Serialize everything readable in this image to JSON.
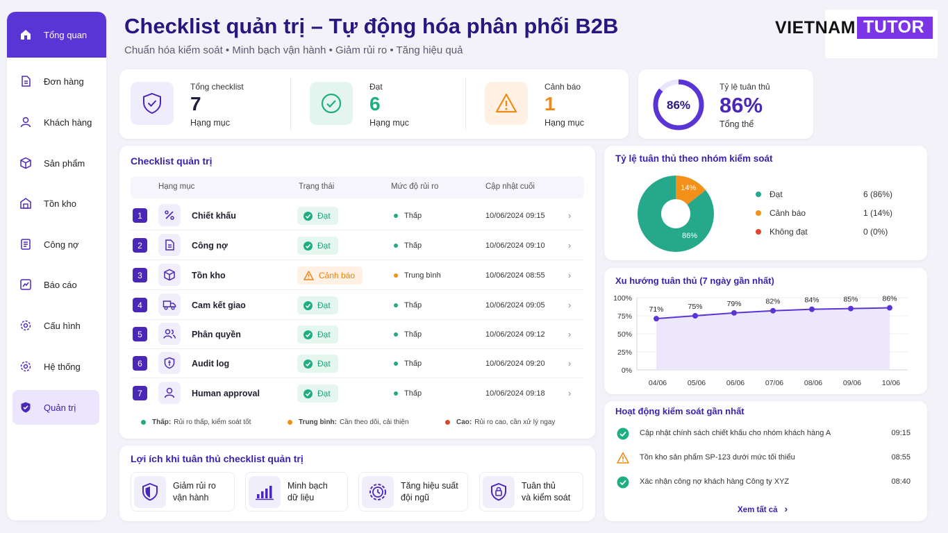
{
  "sidebar": {
    "items": [
      {
        "label": "Tổng quan",
        "icon": "home-icon"
      },
      {
        "label": "Đơn hàng",
        "icon": "order-icon"
      },
      {
        "label": "Khách hàng",
        "icon": "user-icon"
      },
      {
        "label": "Sản phẩm",
        "icon": "box-icon"
      },
      {
        "label": "Tồn kho",
        "icon": "warehouse-icon"
      },
      {
        "label": "Công nợ",
        "icon": "ledger-icon"
      },
      {
        "label": "Báo cáo",
        "icon": "report-icon"
      },
      {
        "label": "Cấu hình",
        "icon": "gear-icon"
      },
      {
        "label": "Hệ thống",
        "icon": "settings-icon"
      },
      {
        "label": "Quản trị",
        "icon": "shield-icon"
      }
    ]
  },
  "header": {
    "title": "Checklist quản trị – Tự động hóa phân phối B2B",
    "subtitle": "Chuẩn hóa kiểm soát  •  Minh bạch vận hành  •  Giảm rủi ro  •  Tăng hiệu quả"
  },
  "logo": {
    "part1": "VIETNAM",
    "part2": "TUTOR"
  },
  "stats": {
    "total": {
      "label": "Tổng checklist",
      "value": "7",
      "unit": "Hạng mục"
    },
    "pass": {
      "label": "Đạt",
      "value": "6",
      "unit": "Hạng mục"
    },
    "warn": {
      "label": "Cảnh báo",
      "value": "1",
      "unit": "Hạng mục"
    },
    "rate": {
      "label": "Tỷ lệ tuân thủ",
      "value": "86%",
      "ring": "86%",
      "unit": "Tổng thể",
      "fraction": 0.86
    }
  },
  "checklist": {
    "title": "Checklist quản trị",
    "headers": {
      "item": "Hạng mục",
      "status": "Trạng thái",
      "risk": "Mức độ rủi ro",
      "updated": "Cập nhật cuối"
    },
    "rows": [
      {
        "no": "1",
        "name": "Chiết khấu",
        "status": "Đạt",
        "risk": "Thấp",
        "date": "10/06/2024 09:15",
        "icon": "percent-icon"
      },
      {
        "no": "2",
        "name": "Công nợ",
        "status": "Đạt",
        "risk": "Thấp",
        "date": "10/06/2024 09:10",
        "icon": "document-icon"
      },
      {
        "no": "3",
        "name": "Tồn kho",
        "status": "Cảnh báo",
        "risk": "Trung bình",
        "date": "10/06/2024 08:55",
        "icon": "cube-icon"
      },
      {
        "no": "4",
        "name": "Cam kết giao",
        "status": "Đạt",
        "risk": "Thấp",
        "date": "10/06/2024 09:05",
        "icon": "truck-icon"
      },
      {
        "no": "5",
        "name": "Phân quyền",
        "status": "Đạt",
        "risk": "Thấp",
        "date": "10/06/2024 09:12",
        "icon": "users-icon"
      },
      {
        "no": "6",
        "name": "Audit log",
        "status": "Đạt",
        "risk": "Thấp",
        "date": "10/06/2024 09:20",
        "icon": "shield-check-icon"
      },
      {
        "no": "7",
        "name": "Human approval",
        "status": "Đạt",
        "risk": "Thấp",
        "date": "10/06/2024 09:18",
        "icon": "person-icon"
      }
    ],
    "legend": [
      {
        "key": "Thấp:",
        "text": "Rủi ro thấp, kiểm soát tốt",
        "color": "#22a884"
      },
      {
        "key": "Trung bình:",
        "text": "Cần theo dõi, cải thiện",
        "color": "#f0901a"
      },
      {
        "key": "Cao:",
        "text": "Rủi ro cao, cần xử lý ngay",
        "color": "#e0452b"
      }
    ]
  },
  "benefits": {
    "title": "Lợi ích khi tuân thủ checklist quản trị",
    "items": [
      {
        "text": "Giảm rủi ro\nvận hành",
        "icon": "shield-icon"
      },
      {
        "text": "Minh bạch\ndữ liệu",
        "icon": "bar-chart-icon"
      },
      {
        "text": "Tăng hiệu suất\nđội ngũ",
        "icon": "gear-clock-icon"
      },
      {
        "text": "Tuân thủ\nvà kiểm soát",
        "icon": "lock-shield-icon"
      }
    ]
  },
  "compliance_group": {
    "title": "Tỷ lệ tuân thủ theo nhóm kiểm soát",
    "legend": [
      {
        "label": "Đạt",
        "value": "6 (86%)",
        "color": "#25a98a"
      },
      {
        "label": "Cảnh báo",
        "value": "1 (14%)",
        "color": "#f2901a"
      },
      {
        "label": "Không đạt",
        "value": "0 (0%)",
        "color": "#e0452b"
      }
    ],
    "slice_labels": [
      "86%",
      "14%"
    ]
  },
  "trend": {
    "title": "Xu hướng tuân thủ (7 ngày gần nhất)"
  },
  "activity": {
    "title": "Hoạt động kiểm soát gần nhất",
    "items": [
      {
        "text": "Cập nhật chính sách chiết khấu cho nhóm khách hàng A",
        "time": "09:15",
        "type": "ok"
      },
      {
        "text": "Tồn kho sản phẩm SP-123 dưới mức tối thiểu",
        "time": "08:55",
        "type": "warn"
      },
      {
        "text": "Xác nhận công nợ khách hàng Công ty XYZ",
        "time": "08:40",
        "type": "ok"
      }
    ],
    "view_all": "Xem tất cả"
  },
  "chart_data": [
    {
      "type": "pie",
      "title": "Tỷ lệ tuân thủ theo nhóm kiểm soát",
      "categories": [
        "Đạt",
        "Cảnh báo",
        "Không đạt"
      ],
      "values": [
        6,
        1,
        0
      ],
      "colors": [
        "#25a98a",
        "#f2901a",
        "#e0452b"
      ]
    },
    {
      "type": "area",
      "title": "Xu hướng tuân thủ (7 ngày gần nhất)",
      "x": [
        "04/06",
        "05/06",
        "06/06",
        "07/06",
        "08/06",
        "09/06",
        "10/06"
      ],
      "values": [
        71,
        75,
        79,
        82,
        84,
        85,
        86
      ],
      "ylim": [
        0,
        100
      ],
      "yticks": [
        "0%",
        "25%",
        "50%",
        "75%",
        "100%"
      ],
      "grid": true,
      "color": "#5b34d6"
    }
  ]
}
